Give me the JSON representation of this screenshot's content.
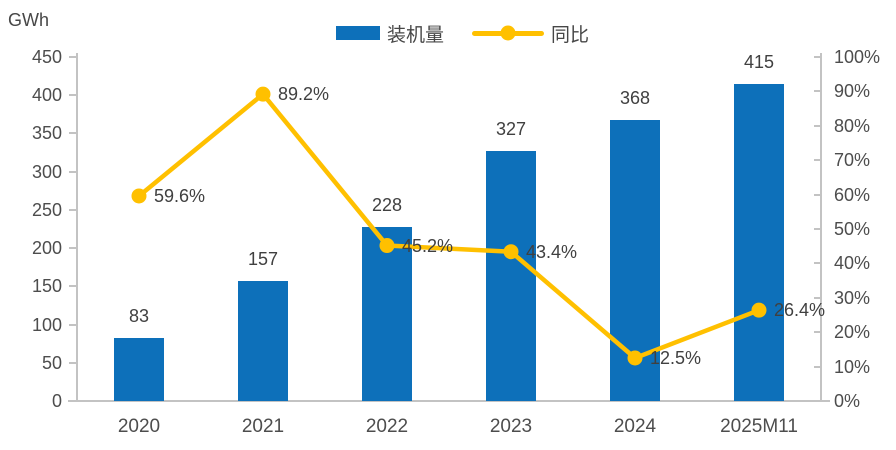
{
  "chart_data": {
    "type": "bar",
    "combo": "bar series on left axis with line series on right axis",
    "title": "",
    "categories": [
      "2020",
      "2021",
      "2022",
      "2023",
      "2024",
      "2025M11"
    ],
    "series": [
      {
        "name": "装机量",
        "type": "bar",
        "axis": "left",
        "values": [
          83,
          157,
          228,
          327,
          368,
          415
        ],
        "value_labels": [
          "83",
          "157",
          "228",
          "327",
          "368",
          "415"
        ],
        "color": "#0d70ba"
      },
      {
        "name": "同比",
        "type": "line",
        "axis": "right",
        "values": [
          59.6,
          89.2,
          45.2,
          43.4,
          12.5,
          26.4
        ],
        "value_labels": [
          "59.6%",
          "89.2%",
          "45.2%",
          "43.4%",
          "12.5%",
          "26.4%"
        ],
        "color": "#ffc000"
      }
    ],
    "left_axis": {
      "title": "GWh",
      "min": 0,
      "max": 450,
      "ticks": [
        0,
        50,
        100,
        150,
        200,
        250,
        300,
        350,
        400,
        450
      ],
      "tick_labels": [
        "0",
        "50",
        "100",
        "150",
        "200",
        "250",
        "300",
        "350",
        "400",
        "450"
      ]
    },
    "right_axis": {
      "min": 0,
      "max": 100,
      "ticks": [
        0,
        10,
        20,
        30,
        40,
        50,
        60,
        70,
        80,
        90,
        100
      ],
      "tick_labels": [
        "0%",
        "10%",
        "20%",
        "30%",
        "40%",
        "50%",
        "60%",
        "70%",
        "80%",
        "90%",
        "100%"
      ]
    },
    "legend": {
      "position": "top-center",
      "items": [
        {
          "label": "装机量",
          "swatch": "bar-rectangle"
        },
        {
          "label": "同比",
          "swatch": "line-with-dot"
        }
      ]
    },
    "grid": "off",
    "axis_line_color": "#c3c3c3",
    "text_color": "#474747"
  }
}
